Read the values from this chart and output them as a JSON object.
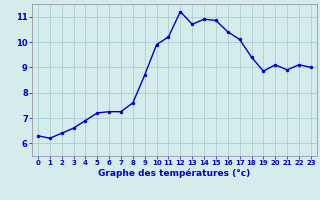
{
  "hours": [
    0,
    1,
    2,
    3,
    4,
    5,
    6,
    7,
    8,
    9,
    10,
    11,
    12,
    13,
    14,
    15,
    16,
    17,
    18,
    19,
    20,
    21,
    22,
    23
  ],
  "temperatures": [
    6.3,
    6.2,
    6.4,
    6.6,
    6.9,
    7.2,
    7.25,
    7.25,
    7.6,
    8.7,
    9.9,
    10.2,
    11.2,
    10.7,
    10.9,
    10.85,
    10.4,
    10.1,
    9.4,
    8.85,
    9.1,
    8.9,
    9.1,
    9.0
  ],
  "line_color": "#0000cc",
  "marker_color": "#0000cc",
  "bg_color": "#d4ecec",
  "grid_color": "#a8cece",
  "axis_label_color": "#0000cc",
  "tick_label_color": "#0000cc",
  "xlabel": "Graphe des températures (°c)",
  "ylim": [
    5.5,
    11.5
  ],
  "xlim": [
    -0.5,
    23.5
  ],
  "yticks": [
    6,
    7,
    8,
    9,
    10,
    11
  ],
  "xticks": [
    0,
    1,
    2,
    3,
    4,
    5,
    6,
    7,
    8,
    9,
    10,
    11,
    12,
    13,
    14,
    15,
    16,
    17,
    18,
    19,
    20,
    21,
    22,
    23
  ]
}
